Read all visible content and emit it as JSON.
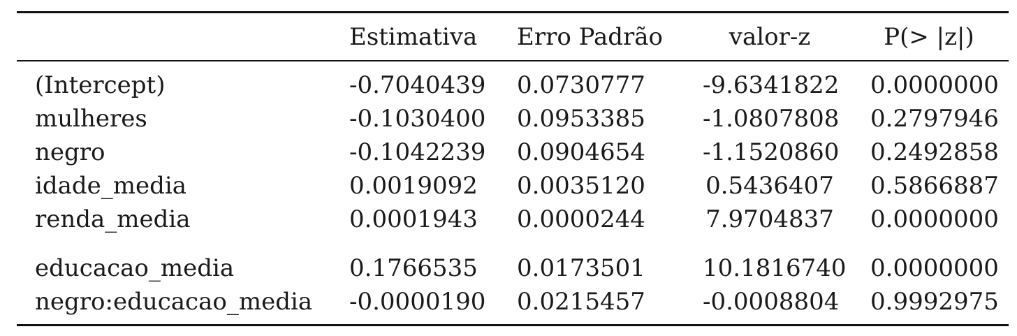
{
  "table": {
    "headers": [
      "",
      "Estimativa",
      "Erro Padrão",
      "valor-z",
      "P(> |z|)"
    ],
    "rows": [
      {
        "term": "(Intercept)",
        "estimate": "-0.7040439",
        "std_error": "0.0730777",
        "z_value": "-9.6341822",
        "p_value": "0.0000000"
      },
      {
        "term": "mulheres",
        "estimate": "-0.1030400",
        "std_error": "0.0953385",
        "z_value": "-1.0807808",
        "p_value": "0.2797946"
      },
      {
        "term": "negro",
        "estimate": "-0.1042239",
        "std_error": "0.0904654",
        "z_value": "-1.1520860",
        "p_value": "0.2492858"
      },
      {
        "term": "idade_media",
        "estimate": "0.0019092",
        "std_error": "0.0035120",
        "z_value": "0.5436407",
        "p_value": "0.5866887"
      },
      {
        "term": "renda_media",
        "estimate": "0.0001943",
        "std_error": "0.0000244",
        "z_value": "7.9704837",
        "p_value": "0.0000000"
      },
      {
        "term": "educacao_media",
        "estimate": "0.1766535",
        "std_error": "0.0173501",
        "z_value": "10.1816740",
        "p_value": "0.0000000"
      },
      {
        "term": "negro:educacao_media",
        "estimate": "-0.0000190",
        "std_error": "0.0215457",
        "z_value": "-0.0008804",
        "p_value": "0.9992975"
      }
    ]
  }
}
